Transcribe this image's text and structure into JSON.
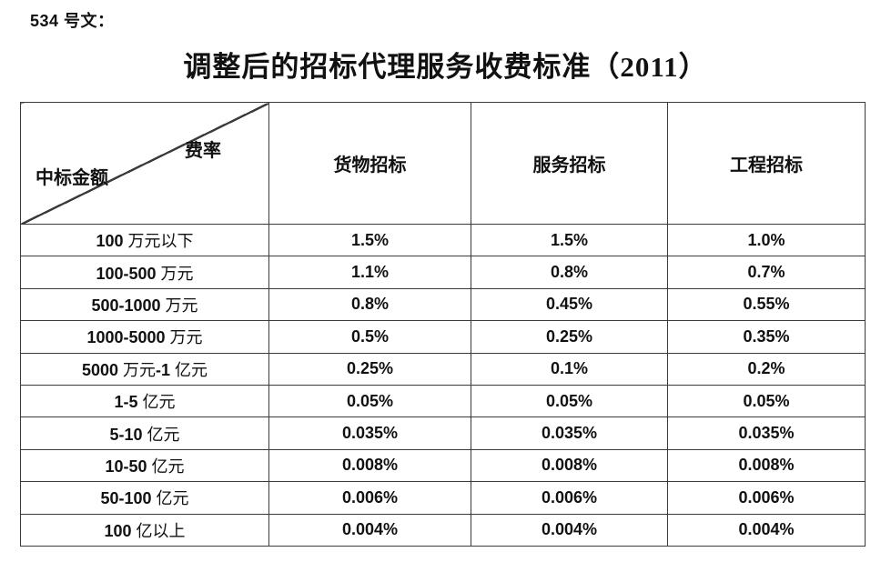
{
  "page": {
    "doc_label": "534 号文：",
    "title": "调整后的招标代理服务收费标准（2011）"
  },
  "table": {
    "corner": {
      "top_right": "费率",
      "bottom_left": "中标金额"
    },
    "columns": [
      "货物招标",
      "服务招标",
      "工程招标"
    ],
    "rows": [
      {
        "label": "100 万元以下",
        "values": [
          "1.5%",
          "1.5%",
          "1.0%"
        ]
      },
      {
        "label": "100-500 万元",
        "values": [
          "1.1%",
          "0.8%",
          "0.7%"
        ]
      },
      {
        "label": "500-1000 万元",
        "values": [
          "0.8%",
          "0.45%",
          "0.55%"
        ]
      },
      {
        "label": "1000-5000 万元",
        "values": [
          "0.5%",
          "0.25%",
          "0.35%"
        ]
      },
      {
        "label": "5000 万元-1 亿元",
        "values": [
          "0.25%",
          "0.1%",
          "0.2%"
        ]
      },
      {
        "label": "1-5 亿元",
        "values": [
          "0.05%",
          "0.05%",
          "0.05%"
        ]
      },
      {
        "label": "5-10 亿元",
        "values": [
          "0.035%",
          "0.035%",
          "0.035%"
        ]
      },
      {
        "label": "10-50 亿元",
        "values": [
          "0.008%",
          "0.008%",
          "0.008%"
        ]
      },
      {
        "label": "50-100 亿元",
        "values": [
          "0.006%",
          "0.006%",
          "0.006%"
        ]
      },
      {
        "label": "100 亿以上",
        "values": [
          "0.004%",
          "0.004%",
          "0.004%"
        ]
      }
    ],
    "colors": {
      "border": "#3b3b3b",
      "text": "#111111",
      "background": "#ffffff"
    }
  }
}
